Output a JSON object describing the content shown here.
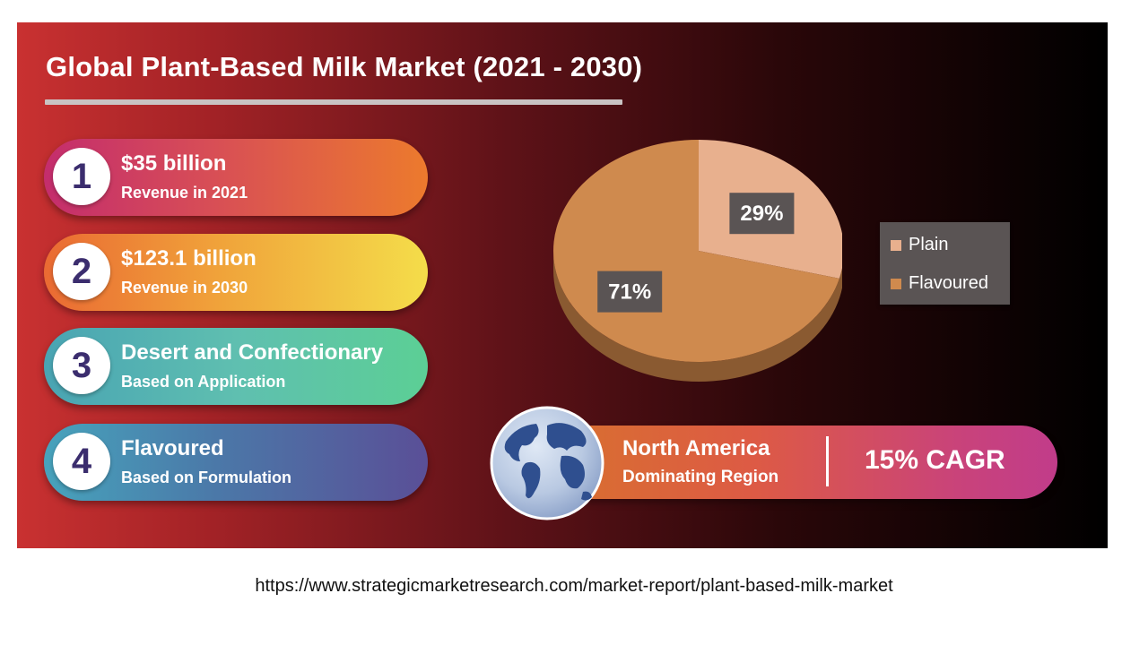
{
  "header": {
    "title": "Global Plant-Based Milk Market (2021 - 2030)"
  },
  "stats": [
    {
      "number": "1",
      "main": "$35 billion",
      "sub": "Revenue in 2021"
    },
    {
      "number": "2",
      "main": "$123.1 billion",
      "sub": "Revenue in 2030"
    },
    {
      "number": "3",
      "main": "Desert and Confectionary",
      "sub": "Based on Application"
    },
    {
      "number": "4",
      "main": "Flavoured",
      "sub": "Based on Formulation"
    }
  ],
  "region": {
    "name": "North America",
    "sub": "Dominating Region",
    "cagr": "15% CAGR"
  },
  "source_url": "https://www.strategicmarketresearch.com/market-report/plant-based-milk-market",
  "colors": {
    "plain": "#e8b08e",
    "flavoured": "#cf8a4e",
    "pie_side": "#8a5a31",
    "label_box": "#5a5454"
  },
  "chart_data": {
    "type": "pie",
    "title": "",
    "slices": [
      {
        "name": "Plain",
        "value": 29,
        "label": "29%"
      },
      {
        "name": "Flavoured",
        "value": 71,
        "label": "71%"
      }
    ],
    "legend": [
      "Plain",
      "Flavoured"
    ],
    "legend_placement": "right"
  }
}
